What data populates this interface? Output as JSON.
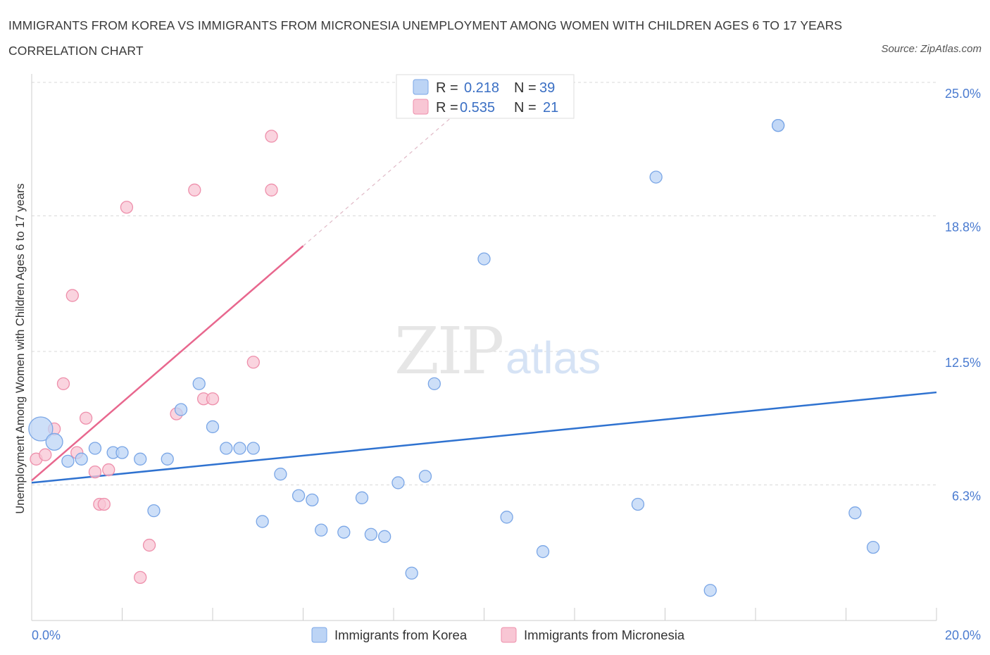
{
  "title": "IMMIGRANTS FROM KOREA VS IMMIGRANTS FROM MICRONESIA UNEMPLOYMENT AMONG WOMEN WITH CHILDREN AGES 6 TO 17 YEARS CORRELATION CHART",
  "source": "Source: ZipAtlas.com",
  "watermark": {
    "zip": "ZIP",
    "atlas": "atlas"
  },
  "colors": {
    "korea_fill": "#bcd4f5",
    "korea_stroke": "#7aa6e6",
    "korea_line": "#2f72d0",
    "micronesia_fill": "#f8c6d4",
    "micronesia_stroke": "#ee8fab",
    "micronesia_line": "#e8678e",
    "tick_text": "#4a7bd0",
    "grid": "#d9d9d9"
  },
  "legend": {
    "rows": [
      {
        "r_label": "R =",
        "r_value": "0.218",
        "n_label": "N =",
        "n_value": "39"
      },
      {
        "r_label": "R =",
        "r_value": "0.535",
        "n_label": "N =",
        "n_value": "21"
      }
    ]
  },
  "chart_data": {
    "type": "scatter",
    "title": "IMMIGRANTS FROM KOREA VS IMMIGRANTS FROM MICRONESIA UNEMPLOYMENT AMONG WOMEN WITH CHILDREN AGES 6 TO 17 YEARS CORRELATION CHART",
    "xlabel": "",
    "ylabel": "Unemployment Among Women with Children Ages 6 to 17 years",
    "xlim": [
      0,
      20
    ],
    "ylim": [
      0,
      25
    ],
    "x_tick_labels": [
      "0.0%",
      "20.0%"
    ],
    "y_tick_values": [
      6.3,
      12.5,
      18.8,
      25.0
    ],
    "y_tick_labels": [
      "6.3%",
      "12.5%",
      "18.8%",
      "25.0%"
    ],
    "grid": true,
    "legend_position": "bottom",
    "series": [
      {
        "name": "Immigrants from Korea",
        "r": 0.218,
        "n": 39,
        "trend": {
          "x0": 0.0,
          "y0": 6.4,
          "x1": 20.0,
          "y1": 10.6
        },
        "points": [
          [
            0.2,
            8.9
          ],
          [
            0.5,
            8.3
          ],
          [
            0.8,
            7.4
          ],
          [
            1.1,
            7.5
          ],
          [
            1.4,
            8.0
          ],
          [
            1.8,
            7.8
          ],
          [
            2.0,
            7.8
          ],
          [
            2.4,
            7.5
          ],
          [
            2.7,
            5.1
          ],
          [
            3.0,
            7.5
          ],
          [
            3.3,
            9.8
          ],
          [
            3.7,
            11.0
          ],
          [
            4.0,
            9.0
          ],
          [
            4.3,
            8.0
          ],
          [
            4.6,
            8.0
          ],
          [
            4.9,
            8.0
          ],
          [
            5.1,
            4.6
          ],
          [
            5.5,
            6.8
          ],
          [
            5.9,
            5.8
          ],
          [
            6.2,
            5.6
          ],
          [
            6.4,
            4.2
          ],
          [
            6.9,
            4.1
          ],
          [
            7.3,
            5.7
          ],
          [
            7.5,
            4.0
          ],
          [
            7.8,
            3.9
          ],
          [
            8.1,
            6.4
          ],
          [
            8.4,
            2.2
          ],
          [
            8.7,
            6.7
          ],
          [
            8.9,
            11.0
          ],
          [
            10.0,
            16.8
          ],
          [
            10.5,
            4.8
          ],
          [
            11.3,
            3.2
          ],
          [
            13.4,
            5.4
          ],
          [
            13.8,
            20.6
          ],
          [
            15.0,
            1.4
          ],
          [
            16.5,
            23.0
          ],
          [
            16.5,
            23.0
          ],
          [
            18.2,
            5.0
          ],
          [
            18.6,
            3.4
          ]
        ],
        "sizes": [
          2,
          1.4,
          1,
          1,
          1,
          1,
          1,
          1,
          1,
          1,
          1,
          1,
          1,
          1,
          1,
          1,
          1,
          1,
          1,
          1,
          1,
          1,
          1,
          1,
          1,
          1,
          1,
          1,
          1,
          1,
          1,
          1,
          1,
          1,
          1,
          1,
          1,
          1,
          1
        ]
      },
      {
        "name": "Immigrants from Micronesia",
        "r": 0.535,
        "n": 21,
        "trend": {
          "x0": 0.0,
          "y0": 6.5,
          "x1": 6.0,
          "y1": 17.4,
          "dash_to_x": 9.4,
          "dash_to_y": 23.6
        },
        "points": [
          [
            0.1,
            7.5
          ],
          [
            0.3,
            7.7
          ],
          [
            0.5,
            8.9
          ],
          [
            0.7,
            11.0
          ],
          [
            0.9,
            15.1
          ],
          [
            1.0,
            7.8
          ],
          [
            1.2,
            9.4
          ],
          [
            1.4,
            6.9
          ],
          [
            1.5,
            5.4
          ],
          [
            1.6,
            5.4
          ],
          [
            1.7,
            7.0
          ],
          [
            2.1,
            19.2
          ],
          [
            2.4,
            2.0
          ],
          [
            2.6,
            3.5
          ],
          [
            3.2,
            9.6
          ],
          [
            3.6,
            20.0
          ],
          [
            3.8,
            10.3
          ],
          [
            4.0,
            10.3
          ],
          [
            4.9,
            12.0
          ],
          [
            5.3,
            22.5
          ],
          [
            5.3,
            20.0
          ]
        ],
        "sizes": [
          1,
          1,
          1,
          1,
          1,
          1,
          1,
          1,
          1,
          1,
          1,
          1,
          1,
          1,
          1,
          1,
          1,
          1,
          1,
          1,
          1
        ]
      }
    ]
  }
}
